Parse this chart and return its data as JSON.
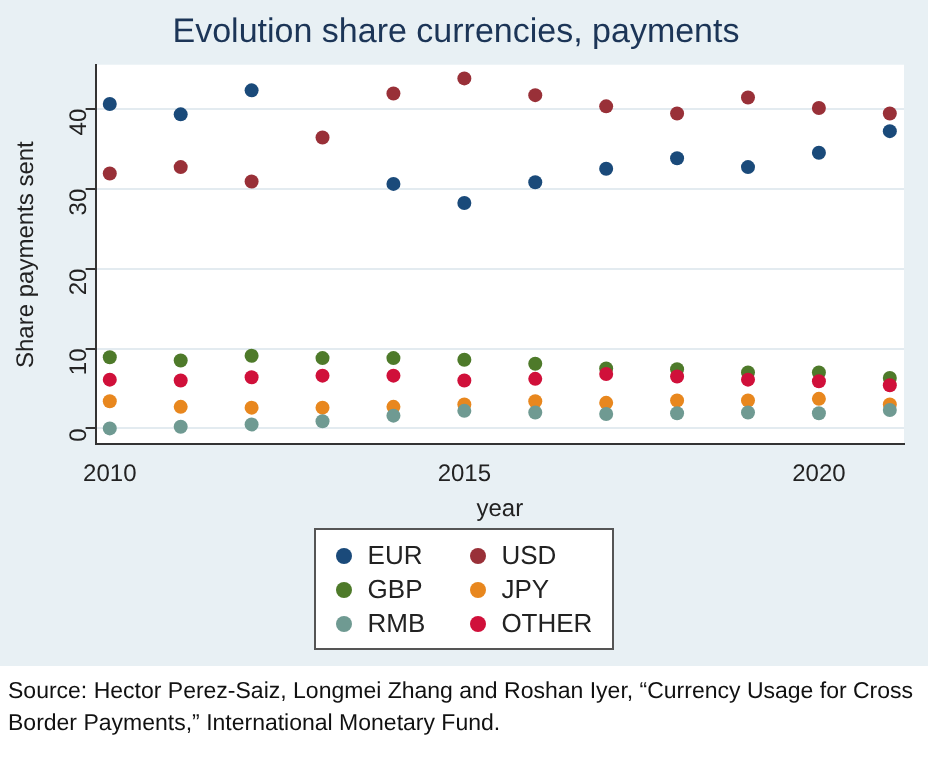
{
  "chart_data": {
    "type": "scatter",
    "title": "Evolution share currencies, payments",
    "xlabel": "year",
    "ylabel": "Share payments sent",
    "x": [
      2010,
      2011,
      2012,
      2013,
      2014,
      2015,
      2016,
      2017,
      2018,
      2019,
      2020,
      2021
    ],
    "series": [
      {
        "name": "EUR",
        "color": "#1a4a7a",
        "values": [
          40.6,
          39.3,
          42.3,
          null,
          30.6,
          28.2,
          30.8,
          32.5,
          33.8,
          32.7,
          34.5,
          37.2
        ]
      },
      {
        "name": "USD",
        "color": "#993038",
        "values": [
          31.9,
          32.7,
          30.9,
          36.4,
          41.9,
          43.8,
          41.7,
          40.3,
          39.4,
          41.4,
          40.1,
          39.4
        ]
      },
      {
        "name": "GBP",
        "color": "#4e7a2a",
        "values": [
          8.9,
          8.5,
          9.1,
          8.8,
          8.8,
          8.6,
          8.1,
          7.5,
          7.4,
          7.0,
          7.0,
          6.3
        ]
      },
      {
        "name": "JPY",
        "color": "#e8871e",
        "values": [
          3.4,
          2.7,
          2.6,
          2.6,
          2.7,
          3.0,
          3.4,
          3.2,
          3.5,
          3.5,
          3.7,
          3.0
        ]
      },
      {
        "name": "RMB",
        "color": "#6f9a92",
        "values": [
          0,
          0.2,
          0.5,
          0.9,
          1.6,
          2.2,
          2.0,
          1.8,
          1.9,
          2.0,
          1.9,
          2.3
        ]
      },
      {
        "name": "OTHER",
        "color": "#d0103a",
        "values": [
          6.1,
          6.0,
          6.4,
          6.6,
          6.6,
          6.0,
          6.2,
          6.8,
          6.5,
          6.1,
          5.9,
          5.4
        ]
      }
    ],
    "xlim": [
      2009.8,
      2021.2
    ],
    "xticks": [
      2010,
      2015,
      2020
    ],
    "ylim": [
      -2,
      45.5
    ],
    "yticks": [
      0,
      10,
      20,
      30,
      40
    ],
    "grid": "y",
    "legend": "bottom",
    "marker": "circle",
    "annotations": [
      "Source: Hector Perez-Saiz, Longmei Zhang and Roshan Iyer, “Currency Usage for Cross Border Payments,”  International Monetary Fund."
    ]
  }
}
